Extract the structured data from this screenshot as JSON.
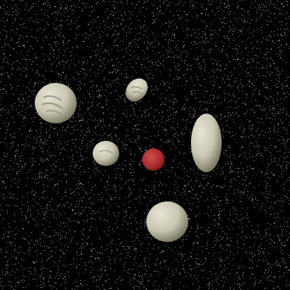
{
  "scene": {
    "background": "#000000",
    "star_color": "#ffffff"
  },
  "colors": {
    "asteroid_fill": "#c9c7b2",
    "asteroid_shadow": "#6f6c58",
    "asteroid_highlight": "#e6e4d3",
    "crater_dark": "#8d8a74",
    "player_ship": "#a32828",
    "player_ship_highlight": "#d05050"
  },
  "objects": [
    {
      "kind": "asteroid",
      "name": "asteroid-large-left"
    },
    {
      "kind": "asteroid",
      "name": "asteroid-small-top"
    },
    {
      "kind": "asteroid",
      "name": "asteroid-oval-right"
    },
    {
      "kind": "asteroid",
      "name": "asteroid-medium-center"
    },
    {
      "kind": "asteroid",
      "name": "asteroid-large-bottom"
    },
    {
      "kind": "ship",
      "name": "player-ship"
    }
  ]
}
